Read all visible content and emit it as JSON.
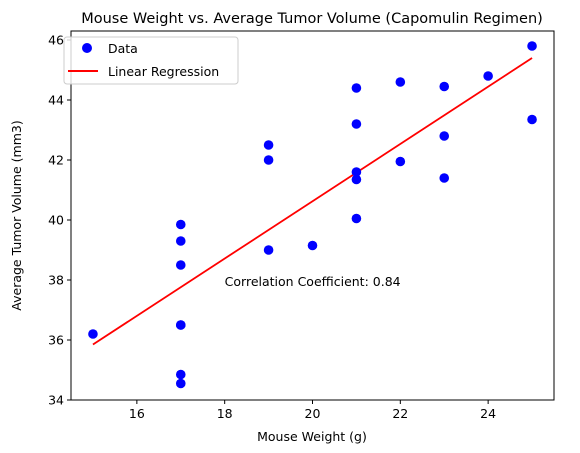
{
  "chart_data": {
    "type": "scatter",
    "title": "Mouse Weight vs. Average Tumor Volume (Capomulin Regimen)",
    "xlabel": "Mouse Weight (g)",
    "ylabel": "Average Tumor Volume (mm3)",
    "xlim": [
      14.5,
      25.5
    ],
    "ylim": [
      34,
      46.3
    ],
    "xticks": [
      16,
      18,
      20,
      22,
      24
    ],
    "yticks": [
      34,
      36,
      38,
      40,
      42,
      44,
      46
    ],
    "grid": false,
    "legend_position": "top-left",
    "series": [
      {
        "name": "Data",
        "type": "scatter",
        "color": "#0000ff",
        "points": [
          [
            15,
            36.2
          ],
          [
            17,
            34.55
          ],
          [
            17,
            34.85
          ],
          [
            17,
            36.5
          ],
          [
            17,
            36.5
          ],
          [
            17,
            38.5
          ],
          [
            17,
            39.3
          ],
          [
            17,
            39.85
          ],
          [
            19,
            39.0
          ],
          [
            19,
            42.0
          ],
          [
            19,
            42.5
          ],
          [
            20,
            39.15
          ],
          [
            21,
            40.05
          ],
          [
            21,
            41.35
          ],
          [
            21,
            41.6
          ],
          [
            21,
            43.2
          ],
          [
            21,
            44.4
          ],
          [
            22,
            41.95
          ],
          [
            22,
            44.6
          ],
          [
            23,
            41.4
          ],
          [
            23,
            42.8
          ],
          [
            23,
            44.45
          ],
          [
            24,
            44.8
          ],
          [
            25,
            43.35
          ],
          [
            25,
            45.8
          ]
        ]
      },
      {
        "name": "Linear Regression",
        "type": "line",
        "color": "#ff0000",
        "points": [
          [
            15,
            35.85
          ],
          [
            25,
            45.4
          ]
        ]
      }
    ],
    "annotations": [
      {
        "text": "Correlation Coefficient: 0.84",
        "x": 18,
        "y": 37.95
      }
    ]
  }
}
